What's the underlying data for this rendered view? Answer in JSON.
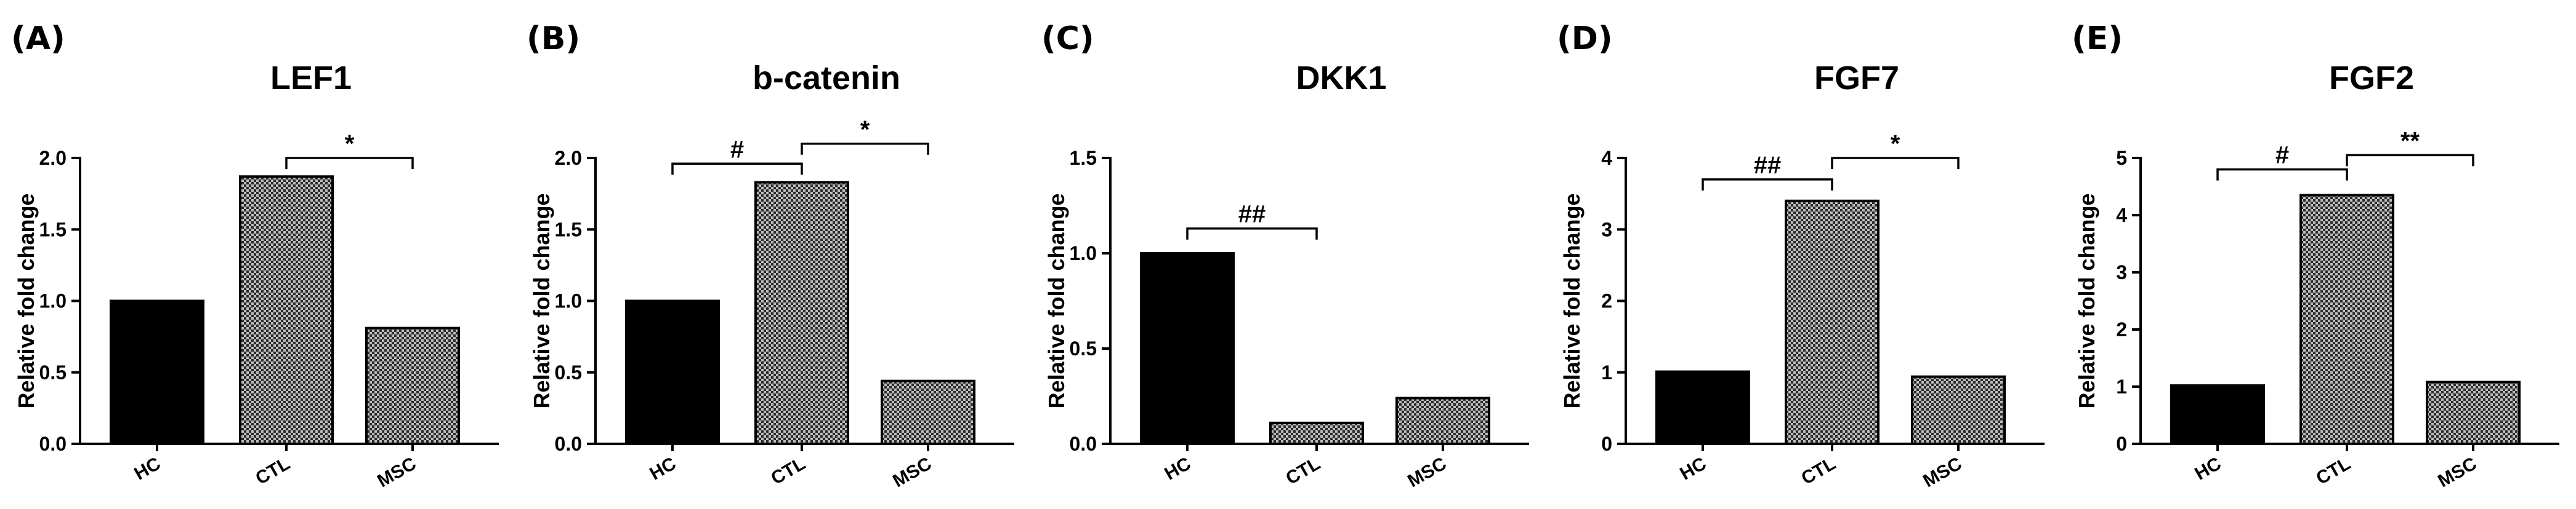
{
  "colors": {
    "hc_fill": "#000000",
    "checker_dark": "#2b2b2b",
    "checker_light": "#bdbdbd",
    "axis": "#000000"
  },
  "chart_data": [
    {
      "type": "bar",
      "panel_label": "(A)",
      "title": "LEF1",
      "ylabel": "Relative fold change",
      "xlabel": "",
      "categories": [
        "HC",
        "CTL",
        "MSC"
      ],
      "fills": [
        "solid",
        "checker",
        "checker"
      ],
      "values": [
        1.0,
        1.87,
        0.81
      ],
      "ylim": [
        0,
        2.0
      ],
      "yticks": [
        0.0,
        0.5,
        1.0,
        1.5,
        2.0
      ],
      "ytick_labels": [
        "0.0",
        "0.5",
        "1.0",
        "1.5",
        "2.0"
      ],
      "grid": false,
      "annotations": [
        {
          "from": 1,
          "to": 2,
          "label": "*",
          "level": 2.0
        }
      ]
    },
    {
      "type": "bar",
      "panel_label": "(B)",
      "title": "b-catenin",
      "ylabel": "Relative fold change",
      "xlabel": "",
      "categories": [
        "HC",
        "CTL",
        "MSC"
      ],
      "fills": [
        "solid",
        "checker",
        "checker"
      ],
      "values": [
        1.0,
        1.83,
        0.44
      ],
      "ylim": [
        0,
        2.0
      ],
      "yticks": [
        0.0,
        0.5,
        1.0,
        1.5,
        2.0
      ],
      "ytick_labels": [
        "0.0",
        "0.5",
        "1.0",
        "1.5",
        "2.0"
      ],
      "grid": false,
      "annotations": [
        {
          "from": 0,
          "to": 1,
          "label": "#",
          "level": 1.96
        },
        {
          "from": 1,
          "to": 2,
          "label": "*",
          "level": 2.1
        }
      ]
    },
    {
      "type": "bar",
      "panel_label": "(C)",
      "title": "DKK1",
      "ylabel": "Relative fold change",
      "xlabel": "",
      "categories": [
        "HC",
        "CTL",
        "MSC"
      ],
      "fills": [
        "solid",
        "checker",
        "checker"
      ],
      "values": [
        1.0,
        0.11,
        0.24
      ],
      "ylim": [
        0,
        1.5
      ],
      "yticks": [
        0.0,
        0.5,
        1.0,
        1.5
      ],
      "ytick_labels": [
        "0.0",
        "0.5",
        "1.0",
        "1.5"
      ],
      "grid": false,
      "annotations": [
        {
          "from": 0,
          "to": 1,
          "label": "##",
          "level": 1.13
        }
      ]
    },
    {
      "type": "bar",
      "panel_label": "(D)",
      "title": "FGF7",
      "ylabel": "Relative fold change",
      "xlabel": "",
      "categories": [
        "HC",
        "CTL",
        "MSC"
      ],
      "fills": [
        "solid",
        "checker",
        "checker"
      ],
      "values": [
        1.01,
        3.4,
        0.94
      ],
      "ylim": [
        0,
        4
      ],
      "yticks": [
        0,
        1,
        2,
        3,
        4
      ],
      "ytick_labels": [
        "0",
        "1",
        "2",
        "3",
        "4"
      ],
      "grid": false,
      "annotations": [
        {
          "from": 0,
          "to": 1,
          "label": "##",
          "level": 3.7
        },
        {
          "from": 1,
          "to": 2,
          "label": "*",
          "level": 4.0
        }
      ]
    },
    {
      "type": "bar",
      "panel_label": "(E)",
      "title": "FGF2",
      "ylabel": "Relative fold change",
      "xlabel": "",
      "categories": [
        "HC",
        "CTL",
        "MSC"
      ],
      "fills": [
        "solid",
        "checker",
        "checker"
      ],
      "values": [
        1.02,
        4.35,
        1.08
      ],
      "ylim": [
        0,
        5
      ],
      "yticks": [
        0,
        1,
        2,
        3,
        4,
        5
      ],
      "ytick_labels": [
        "0",
        "1",
        "2",
        "3",
        "4",
        "5"
      ],
      "grid": false,
      "annotations": [
        {
          "from": 0,
          "to": 1,
          "label": "#",
          "level": 4.8
        },
        {
          "from": 1,
          "to": 2,
          "label": "**",
          "level": 5.05
        }
      ]
    }
  ]
}
